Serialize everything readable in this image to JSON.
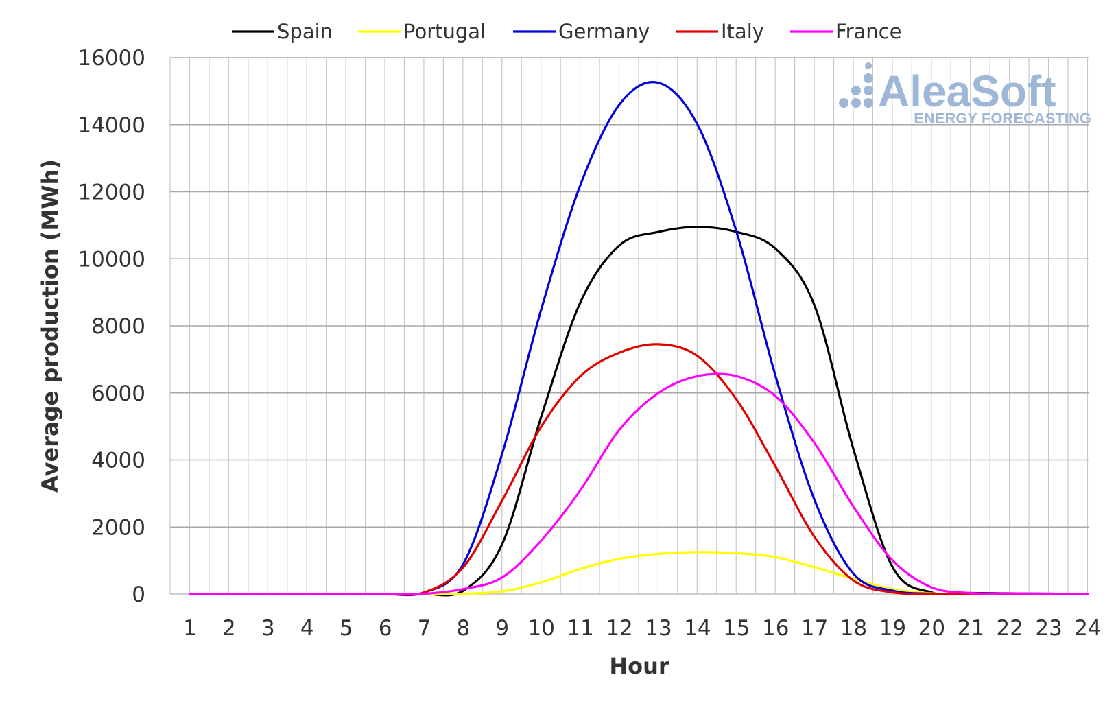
{
  "chart_data": {
    "type": "line",
    "title": "",
    "xlabel": "Hour",
    "ylabel": "Average production (MWh)",
    "ylim": [
      0,
      16000
    ],
    "yticks": [
      0,
      2000,
      4000,
      6000,
      8000,
      10000,
      12000,
      14000,
      16000
    ],
    "grid": true,
    "legend_position": "top",
    "categories": [
      1,
      2,
      3,
      4,
      5,
      6,
      7,
      8,
      9,
      10,
      11,
      12,
      13,
      14,
      15,
      16,
      17,
      18,
      19,
      20,
      21,
      22,
      23,
      24
    ],
    "series": [
      {
        "name": "Spain",
        "color": "#000000",
        "values": [
          0,
          0,
          0,
          0,
          0,
          0,
          0,
          100,
          1500,
          5300,
          8700,
          10400,
          10800,
          10950,
          10800,
          10300,
          8600,
          4300,
          800,
          50,
          30,
          20,
          10,
          0
        ]
      },
      {
        "name": "Portugal",
        "color": "#ffff00",
        "values": [
          0,
          0,
          0,
          0,
          0,
          0,
          0,
          10,
          80,
          350,
          750,
          1050,
          1200,
          1250,
          1220,
          1100,
          800,
          450,
          150,
          20,
          0,
          0,
          0,
          0
        ]
      },
      {
        "name": "Germany",
        "color": "#0000d9",
        "values": [
          0,
          0,
          0,
          0,
          0,
          0,
          50,
          900,
          4200,
          8500,
          12200,
          14600,
          15250,
          14000,
          10800,
          6500,
          2800,
          600,
          100,
          10,
          0,
          0,
          0,
          0
        ]
      },
      {
        "name": "Italy",
        "color": "#e00000",
        "values": [
          0,
          0,
          0,
          0,
          0,
          0,
          50,
          800,
          2800,
          5000,
          6500,
          7200,
          7450,
          7100,
          5800,
          3800,
          1700,
          400,
          50,
          0,
          0,
          0,
          0,
          0
        ]
      },
      {
        "name": "France",
        "color": "#ff00ff",
        "values": [
          0,
          0,
          0,
          0,
          0,
          0,
          10,
          150,
          500,
          1600,
          3100,
          4900,
          6000,
          6500,
          6500,
          5900,
          4500,
          2600,
          1000,
          200,
          30,
          20,
          10,
          0
        ]
      }
    ]
  },
  "logo": {
    "name": "AleaSoft",
    "tagline": "ENERGY FORECASTING",
    "color": "#9fb7d6"
  }
}
